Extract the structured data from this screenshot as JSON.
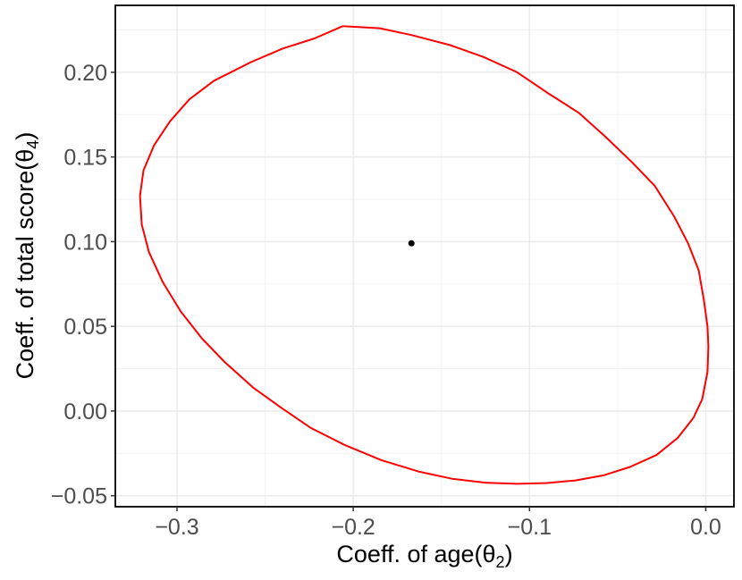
{
  "chart_data": {
    "type": "line",
    "title": "",
    "xlabel_main": "Coeff. of age(θ",
    "xlabel_sub": "2",
    "xlabel_close": ")",
    "ylabel_main": "Coeff. of total score(θ",
    "ylabel_sub": "4",
    "ylabel_close": ")",
    "xlim": [
      -0.335,
      0.016
    ],
    "ylim": [
      -0.0565,
      0.2395
    ],
    "x_ticks": [
      -0.3,
      -0.2,
      -0.1,
      0.0
    ],
    "x_tick_labels": [
      "−0.3",
      "−0.2",
      "−0.1",
      "0.0"
    ],
    "y_ticks": [
      -0.05,
      0.0,
      0.05,
      0.1,
      0.15,
      0.2
    ],
    "y_tick_labels": [
      "−0.05",
      "0.00",
      "0.05",
      "0.10",
      "0.15",
      "0.20"
    ],
    "grid": true,
    "series": [
      {
        "kind": "ellipse",
        "color": "#ff0000",
        "x": [
          -0.206,
          -0.185,
          -0.167,
          -0.145,
          -0.126,
          -0.107,
          -0.09,
          -0.072,
          -0.057,
          -0.042,
          -0.029,
          -0.018,
          -0.01,
          -0.004,
          -0.001,
          0.001,
          0.0015,
          0.001,
          -0.002,
          -0.007,
          -0.016,
          -0.028,
          -0.043,
          -0.058,
          -0.074,
          -0.09,
          -0.107,
          -0.125,
          -0.144,
          -0.163,
          -0.184,
          -0.205,
          -0.224,
          -0.241,
          -0.257,
          -0.273,
          -0.286,
          -0.298,
          -0.308,
          -0.316,
          -0.32,
          -0.321,
          -0.319,
          -0.313,
          -0.304,
          -0.293,
          -0.279,
          -0.258,
          -0.24,
          -0.222,
          -0.206
        ],
        "y": [
          0.2272,
          0.226,
          0.222,
          0.216,
          0.209,
          0.2,
          0.188,
          0.176,
          0.162,
          0.147,
          0.133,
          0.115,
          0.099,
          0.083,
          0.065,
          0.05,
          0.038,
          0.023,
          0.007,
          -0.004,
          -0.016,
          -0.026,
          -0.033,
          -0.038,
          -0.041,
          -0.0425,
          -0.043,
          -0.0423,
          -0.04,
          -0.0357,
          -0.029,
          -0.02,
          -0.01,
          0.002,
          0.014,
          0.029,
          0.043,
          0.059,
          0.076,
          0.094,
          0.11,
          0.127,
          0.142,
          0.157,
          0.171,
          0.184,
          0.195,
          0.206,
          0.214,
          0.22,
          0.2272
        ]
      }
    ],
    "point": {
      "x": -0.167,
      "y": 0.099,
      "color": "#000000"
    }
  }
}
